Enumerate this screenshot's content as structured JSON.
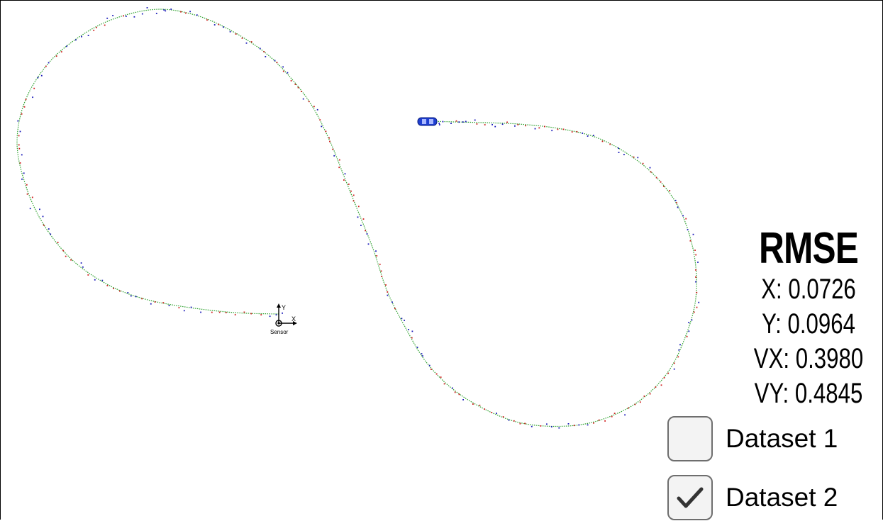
{
  "sensor": {
    "axis_y_label": "Y",
    "axis_x_label": "X",
    "label": "Sensor"
  },
  "rmse": {
    "title": "RMSE",
    "rows": [
      {
        "label": "X:",
        "value": "0.0726"
      },
      {
        "label": "Y:",
        "value": "0.0964"
      },
      {
        "label": "VX:",
        "value": "0.3980"
      },
      {
        "label": "VY:",
        "value": "0.4845"
      }
    ]
  },
  "datasets": [
    {
      "label": "Dataset 1",
      "checked": false
    },
    {
      "label": "Dataset 2",
      "checked": true
    }
  ],
  "colors": {
    "estimate_path": "#2ca02c",
    "radar_marker": "#1a1ab8",
    "lidar_marker": "#d02020",
    "car": "#1f3fd1",
    "checkbox_border": "#6e6e6e"
  },
  "icons": {
    "car": "car-icon",
    "sensor": "sensor-axes-icon",
    "check": "checkmark-icon"
  }
}
